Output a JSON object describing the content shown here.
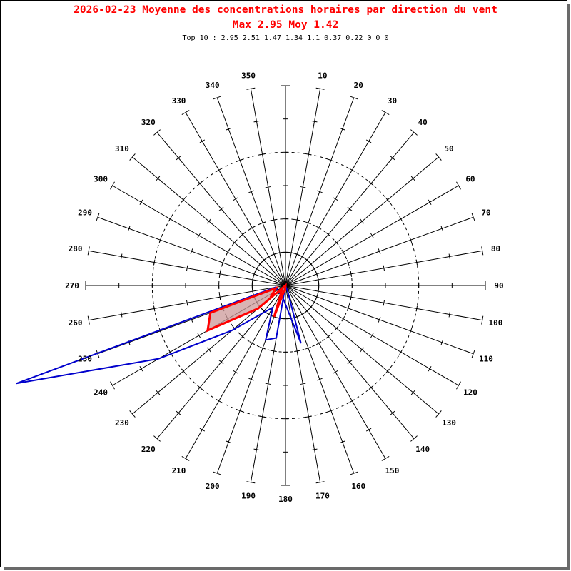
{
  "chart_data": {
    "type": "polar",
    "title": "2026-02-23 Moyenne des concentrations horaires par direction du vent",
    "subtitle": "Max 2.95 Moy 1.42",
    "top10": "Top 10 : 2.95 2.51 1.47 1.34 1.1 0.37 0.22 0 0 0",
    "directions": [
      10,
      20,
      30,
      40,
      50,
      60,
      70,
      80,
      90,
      100,
      110,
      120,
      130,
      140,
      150,
      160,
      170,
      180,
      190,
      200,
      210,
      220,
      230,
      240,
      250,
      260,
      270,
      280,
      290,
      300,
      310,
      320,
      330,
      340,
      350
    ],
    "radial_max": 3.0,
    "series": [
      {
        "color": "#0000cc",
        "points": [
          [
            190,
            0.8
          ],
          [
            200,
            0.87
          ],
          [
            210,
            0.38
          ],
          [
            230,
            1.05
          ],
          [
            240,
            2.2
          ],
          [
            250,
            4.3
          ],
          [
            260,
            0.15
          ],
          [
            190,
            0.2
          ],
          [
            165,
            0.9
          ],
          [
            160,
            0.1
          ]
        ]
      },
      {
        "color": "#ff0000",
        "fill": "#cc9999",
        "points": [
          [
            230,
            0.54
          ],
          [
            240,
            1.35
          ],
          [
            250,
            1.2
          ],
          [
            255,
            0.15
          ],
          [
            235,
            0.25
          ],
          [
            215,
            0.1
          ],
          [
            200,
            0.5
          ],
          [
            195,
            0.1
          ],
          [
            185,
            0.08
          ]
        ]
      }
    ]
  }
}
